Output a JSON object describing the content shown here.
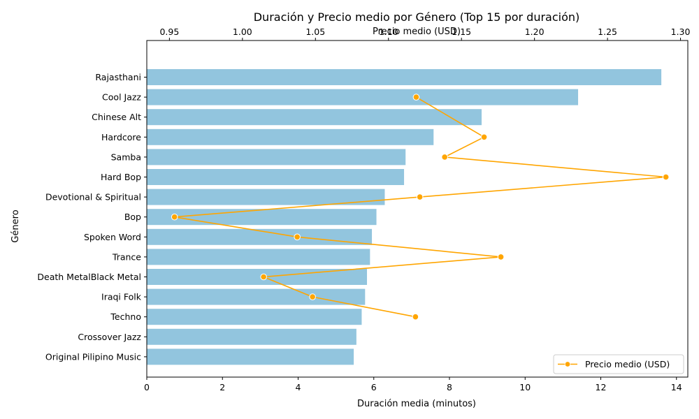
{
  "chart_data": {
    "type": "bar",
    "orientation": "horizontal",
    "title": "Duración y Precio medio por Género (Top 15 por duración)",
    "xlabel": "Duración media (minutos)",
    "x2label": "Precio medio (USD)",
    "ylabel": "Género",
    "xlim": [
      0,
      14.3
    ],
    "x2lim": [
      0.9345,
      1.305
    ],
    "xticks": [
      "0",
      "2",
      "4",
      "6",
      "8",
      "10",
      "12",
      "14"
    ],
    "x2ticks": [
      "0.95",
      "1.00",
      "1.05",
      "1.10",
      "1.15",
      "1.20",
      "1.25",
      "1.30"
    ],
    "legend_position": "lower-right",
    "bar_color": "#92c5de",
    "line_color": "#ffa500",
    "categories": [
      "Rajasthani",
      "Cool Jazz",
      "Chinese Alt",
      "Hardcore",
      "Samba",
      "Hard Bop",
      "Devotional & Spiritual",
      "Bop",
      "Spoken Word",
      "Trance",
      "Death MetalBlack Metal",
      "Iraqi Folk",
      "Techno",
      "Crossover Jazz",
      "Original Pilipino Music"
    ],
    "series": [
      {
        "name": "",
        "kind": "bar",
        "axis": "bottom",
        "values": [
          13.6,
          11.4,
          8.85,
          7.58,
          6.84,
          6.8,
          6.29,
          6.07,
          5.95,
          5.9,
          5.82,
          5.77,
          5.68,
          5.54,
          5.47
        ]
      },
      {
        "name": "Precio medio (USD)",
        "kind": "line",
        "axis": "top",
        "values": [
          null,
          1.119,
          null,
          1.1655,
          1.1385,
          1.29,
          1.1215,
          0.9535,
          1.0375,
          1.177,
          1.0145,
          1.048,
          1.1185,
          null,
          null
        ]
      }
    ]
  }
}
